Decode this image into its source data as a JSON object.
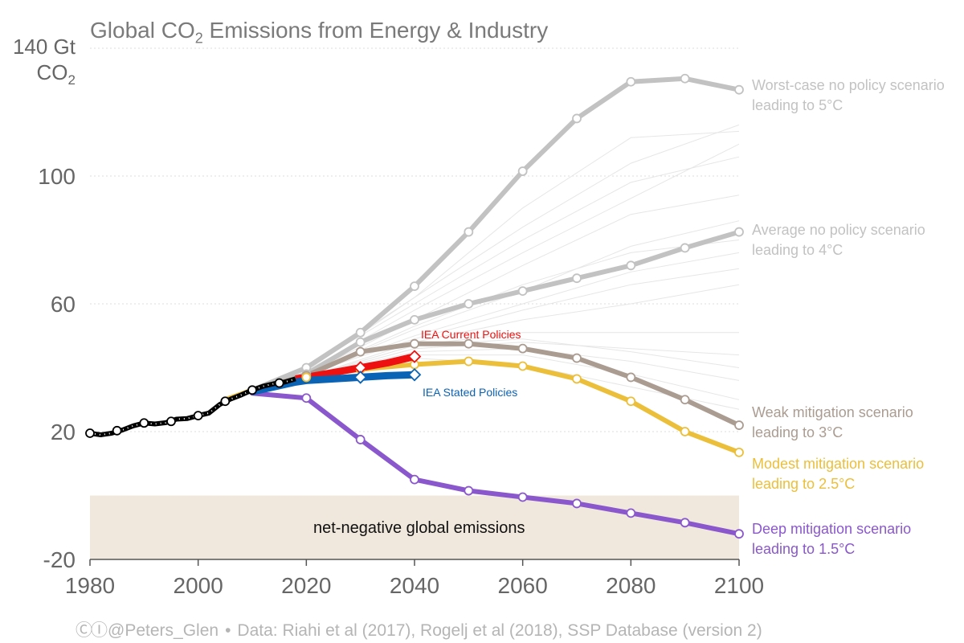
{
  "title_parts": {
    "pre": "Global CO",
    "sub": "2",
    "post": " Emissions from Energy & Industry"
  },
  "y_unit": {
    "line1": "140 Gt",
    "line2_pre": "CO",
    "line2_sub": "2"
  },
  "footer": {
    "handle": "@Peters_Glen",
    "sep": "•",
    "source": "Data: Riahi et al (2017), Rogelj et al (2018), SSP Database (version 2)"
  },
  "colors": {
    "historical": "#000000",
    "worst": "#c2c2c2",
    "average": "#c2c2c2",
    "weak": "#ab9c91",
    "modest": "#ecbf3a",
    "deep": "#8a58cc",
    "iea_current": "#ee1111",
    "iea_stated": "#0b63b5",
    "background_scenarios": "#e6e6e6",
    "net_negative_band": "#f0e8dd",
    "axis_text": "#666666"
  },
  "chart_data": {
    "type": "line",
    "title": "Global CO₂ Emissions from Energy & Industry",
    "ylabel": "Gt CO₂",
    "xlim": [
      1980,
      2100
    ],
    "ylim": [
      -20,
      140
    ],
    "xticks": [
      1980,
      2000,
      2020,
      2040,
      2060,
      2080,
      2100
    ],
    "yticks": [
      {
        "value": 140,
        "label": "140 Gt CO₂"
      },
      {
        "value": 100,
        "label": "100"
      },
      {
        "value": 60,
        "label": "60"
      },
      {
        "value": 20,
        "label": "20"
      },
      {
        "value": -20,
        "label": "-20"
      }
    ],
    "grid": "horizontal dotted",
    "band": {
      "label": "net-negative global emissions",
      "y_from": -20,
      "y_to": 0
    },
    "historical": {
      "x": [
        1980,
        1982,
        1984,
        1986,
        1988,
        1990,
        1992,
        1994,
        1996,
        1998,
        2000,
        2002,
        2004,
        2006,
        2008,
        2010,
        2012,
        2014,
        2016,
        2018
      ],
      "y": [
        19.5,
        19.0,
        19.5,
        20.5,
        21.8,
        22.7,
        22.4,
        22.8,
        23.9,
        24.1,
        25.0,
        25.8,
        28.5,
        30.2,
        31.5,
        33.0,
        34.2,
        35.0,
        35.5,
        36.5
      ]
    },
    "historical_markers": [
      {
        "x": 1980,
        "y": 19.5
      },
      {
        "x": 1985,
        "y": 20.3
      },
      {
        "x": 1990,
        "y": 22.7
      },
      {
        "x": 1995,
        "y": 23.2
      },
      {
        "x": 2000,
        "y": 25.0
      },
      {
        "x": 2005,
        "y": 29.5
      },
      {
        "x": 2010,
        "y": 33.0
      },
      {
        "x": 2015,
        "y": 35.2
      }
    ],
    "series": [
      {
        "key": "worst",
        "name": "Worst-case no policy scenario",
        "name2": "leading to 5°C",
        "x": [
          2010,
          2020,
          2030,
          2040,
          2050,
          2060,
          2070,
          2080,
          2090,
          2100
        ],
        "y": [
          33,
          40,
          51,
          65.5,
          82.5,
          101.5,
          118,
          129.5,
          130.5,
          127
        ]
      },
      {
        "key": "average",
        "name": "Average no policy scenario",
        "name2": "leading to 4°C",
        "x": [
          2010,
          2020,
          2030,
          2040,
          2050,
          2060,
          2070,
          2080,
          2090,
          2100
        ],
        "y": [
          33,
          38,
          48,
          55,
          60,
          64,
          68,
          72,
          77.5,
          82.5
        ]
      },
      {
        "key": "weak",
        "name": "Weak mitigation scenario",
        "name2": "leading to 3°C",
        "x": [
          2010,
          2020,
          2030,
          2040,
          2050,
          2060,
          2070,
          2080,
          2090,
          2100
        ],
        "y": [
          33,
          37.5,
          45,
          47.5,
          47.5,
          46,
          43,
          37,
          30,
          22
        ]
      },
      {
        "key": "modest",
        "name": "Modest mitigation scenario",
        "name2": "leading to 2.5°C",
        "x": [
          2005,
          2010,
          2020,
          2030,
          2040,
          2050,
          2060,
          2070,
          2080,
          2090,
          2100
        ],
        "y": [
          30,
          33,
          37,
          39.5,
          41,
          42,
          40.5,
          36.5,
          29.5,
          20,
          13.5
        ]
      },
      {
        "key": "deep",
        "name": "Deep mitigation scenario",
        "name2": "leading to 1.5°C",
        "x": [
          2010,
          2020,
          2030,
          2040,
          2050,
          2060,
          2070,
          2080,
          2090,
          2100
        ],
        "y": [
          32,
          30.5,
          17.5,
          5,
          1.5,
          -0.5,
          -2.5,
          -5.5,
          -8.5,
          -12
        ]
      }
    ],
    "iea": [
      {
        "key": "iea_current",
        "name": "IEA Current Policies",
        "x": [
          2018,
          2020,
          2025,
          2030,
          2035,
          2040
        ],
        "y": [
          36.5,
          37,
          38.5,
          40,
          41.5,
          43.5
        ]
      },
      {
        "key": "iea_stated",
        "name": "IEA Stated Policies",
        "x": [
          2010,
          2018,
          2020,
          2025,
          2030,
          2035,
          2040
        ],
        "y": [
          32.5,
          35.5,
          36,
          36.5,
          37,
          37.5,
          37.8
        ]
      }
    ],
    "background_scenarios": [
      {
        "x": [
          2020,
          2040,
          2060,
          2080,
          2100
        ],
        "y": [
          40,
          62,
          90,
          112,
          114
        ]
      },
      {
        "x": [
          2020,
          2040,
          2060,
          2080,
          2100
        ],
        "y": [
          40,
          60,
          80,
          98,
          106
        ]
      },
      {
        "x": [
          2020,
          2040,
          2060,
          2080,
          2100
        ],
        "y": [
          39,
          58,
          76,
          93,
          110
        ]
      },
      {
        "x": [
          2020,
          2040,
          2060,
          2080,
          2100
        ],
        "y": [
          39,
          62,
          84,
          104,
          116
        ]
      },
      {
        "x": [
          2020,
          2040,
          2060,
          2080,
          2100
        ],
        "y": [
          38,
          52,
          64,
          78,
          86
        ]
      },
      {
        "x": [
          2020,
          2040,
          2060,
          2080,
          2100
        ],
        "y": [
          38,
          50,
          60,
          70,
          76
        ]
      },
      {
        "x": [
          2020,
          2040,
          2060,
          2080,
          2100
        ],
        "y": [
          38,
          49,
          58,
          66,
          71
        ]
      },
      {
        "x": [
          2020,
          2040,
          2060,
          2080,
          2100
        ],
        "y": [
          38,
          53,
          66,
          76,
          80
        ]
      },
      {
        "x": [
          2020,
          2040,
          2060,
          2080,
          2100
        ],
        "y": [
          37,
          47,
          51,
          51,
          51
        ]
      },
      {
        "x": [
          2020,
          2040,
          2060,
          2080,
          2100
        ],
        "y": [
          37,
          46,
          48,
          46,
          44
        ]
      },
      {
        "x": [
          2020,
          2040,
          2060,
          2080,
          2100
        ],
        "y": [
          37,
          45,
          46,
          42,
          36
        ]
      },
      {
        "x": [
          2020,
          2040,
          2060,
          2080,
          2100
        ],
        "y": [
          37,
          44,
          44,
          38,
          30
        ]
      },
      {
        "x": [
          2020,
          2040,
          2060,
          2080,
          2100
        ],
        "y": [
          37,
          47,
          49,
          45,
          40
        ]
      },
      {
        "x": [
          2020,
          2040,
          2060,
          2080,
          2100
        ],
        "y": [
          37,
          43,
          41,
          34,
          27
        ]
      },
      {
        "x": [
          2020,
          2040,
          2060,
          2080,
          2100
        ],
        "y": [
          37,
          48,
          55,
          60,
          66
        ]
      },
      {
        "x": [
          2020,
          2040,
          2060,
          2080,
          2100
        ],
        "y": [
          38,
          55,
          72,
          88,
          94
        ]
      }
    ]
  }
}
